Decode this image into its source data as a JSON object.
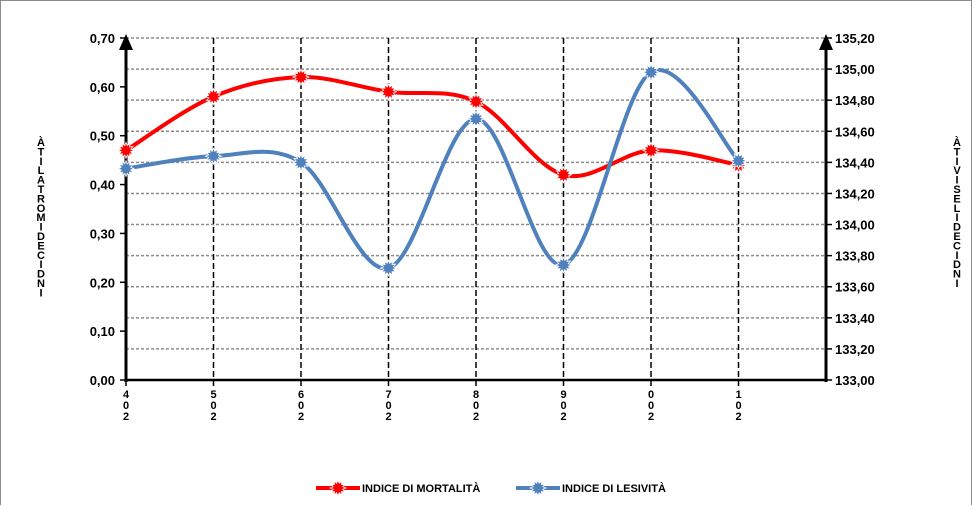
{
  "chart_data": {
    "type": "line",
    "categories": [
      "2004",
      "2005",
      "2006",
      "2007",
      "2008",
      "2009",
      "2010",
      "2011"
    ],
    "category_labels": [
      [
        "4",
        "0",
        "2"
      ],
      [
        "5",
        "0",
        "2"
      ],
      [
        "6",
        "0",
        "2"
      ],
      [
        "7",
        "0",
        "2"
      ],
      [
        "8",
        "0",
        "2"
      ],
      [
        "9",
        "0",
        "2"
      ],
      [
        "0",
        "0",
        "2"
      ],
      [
        "1",
        "0",
        "2"
      ]
    ],
    "series": [
      {
        "name": "INDICE DI MORTALITÀ",
        "axis": "left",
        "color": "#ff0000",
        "values": [
          0.47,
          0.58,
          0.62,
          0.59,
          0.57,
          0.42,
          0.47,
          0.44
        ]
      },
      {
        "name": "INDICE DI LESIVITÀ",
        "axis": "right",
        "color": "#4f81bd",
        "values": [
          134.36,
          134.44,
          134.4,
          133.72,
          134.68,
          133.74,
          134.98,
          134.41
        ]
      }
    ],
    "y_left": {
      "ylim": [
        0,
        0.7
      ],
      "ticks": [
        "0,00",
        "0,10",
        "0,20",
        "0,30",
        "0,40",
        "0,50",
        "0,60",
        "0,70"
      ],
      "label_chars": [
        "À",
        "T",
        "I",
        "L",
        "A",
        "T",
        "R",
        "O",
        "M",
        "I",
        "D",
        "E",
        "C",
        "I",
        "D",
        "N",
        "I"
      ]
    },
    "y_right": {
      "ylim": [
        133.0,
        135.2
      ],
      "ticks": [
        "133,00",
        "133,20",
        "133,40",
        "133,60",
        "133,80",
        "134,00",
        "134,20",
        "134,40",
        "134,60",
        "134,80",
        "135,00",
        "135,20"
      ],
      "label_chars": [
        "À",
        "T",
        "I",
        "V",
        "I",
        "S",
        "E",
        "L",
        "I",
        "D",
        "E",
        "C",
        "I",
        "D",
        "N",
        "I"
      ]
    },
    "grid": true,
    "smooth": true,
    "legend": "bottom-center"
  }
}
